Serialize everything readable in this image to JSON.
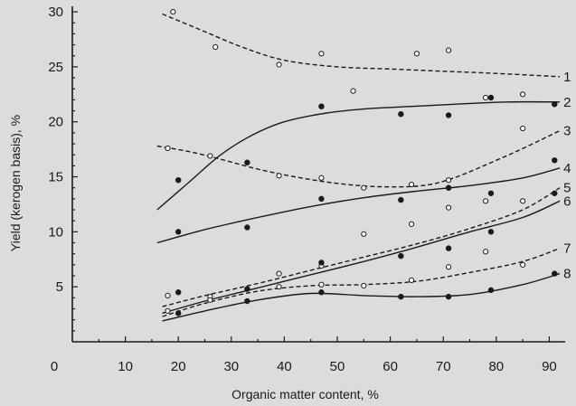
{
  "chart_data": {
    "type": "scatter",
    "title": "",
    "xlabel": "Organic matter content, %",
    "ylabel": "Yield (kerogen basis), %",
    "xlim": [
      0,
      93
    ],
    "ylim": [
      0,
      30.5
    ],
    "xticks": [
      0,
      10,
      20,
      30,
      40,
      50,
      60,
      70,
      80,
      90
    ],
    "yticks": [
      5,
      10,
      15,
      20,
      25,
      30
    ],
    "colors": {
      "ink": "#1a1a1a",
      "background": "#dcdcdc",
      "open_marker_fill": "#ffffff"
    },
    "series": [
      {
        "name": "1",
        "style": "dashed",
        "marker": "open",
        "curve": [
          [
            17,
            29.8
          ],
          [
            25,
            28.2
          ],
          [
            32,
            26.8
          ],
          [
            40,
            25.6
          ],
          [
            50,
            25.0
          ],
          [
            60,
            24.8
          ],
          [
            70,
            24.6
          ],
          [
            80,
            24.4
          ],
          [
            92,
            24.1
          ]
        ],
        "points": [
          [
            19,
            30.0
          ],
          [
            27,
            26.8
          ],
          [
            39,
            25.2
          ],
          [
            47,
            26.2
          ],
          [
            53,
            22.8
          ],
          [
            65,
            26.2
          ],
          [
            71,
            26.5
          ],
          [
            78,
            22.2
          ],
          [
            85,
            22.5
          ]
        ]
      },
      {
        "name": "2",
        "style": "solid",
        "marker": "filled",
        "curve": [
          [
            16,
            12.0
          ],
          [
            22,
            14.5
          ],
          [
            28,
            17.0
          ],
          [
            34,
            18.8
          ],
          [
            40,
            20.0
          ],
          [
            48,
            20.8
          ],
          [
            56,
            21.2
          ],
          [
            64,
            21.4
          ],
          [
            72,
            21.6
          ],
          [
            82,
            21.8
          ],
          [
            92,
            21.8
          ]
        ],
        "points": [
          [
            20,
            14.7
          ],
          [
            33,
            16.3
          ],
          [
            47,
            21.4
          ],
          [
            62,
            20.7
          ],
          [
            71,
            20.6
          ],
          [
            79,
            22.2
          ],
          [
            91,
            21.6
          ]
        ]
      },
      {
        "name": "3",
        "style": "dashed",
        "marker": "open",
        "curve": [
          [
            16,
            17.8
          ],
          [
            22,
            17.3
          ],
          [
            28,
            16.6
          ],
          [
            35,
            15.7
          ],
          [
            42,
            15.0
          ],
          [
            50,
            14.4
          ],
          [
            58,
            14.1
          ],
          [
            66,
            14.2
          ],
          [
            72,
            14.9
          ],
          [
            80,
            16.5
          ],
          [
            86,
            17.8
          ],
          [
            92,
            19.2
          ]
        ],
        "points": [
          [
            18,
            17.6
          ],
          [
            26,
            16.9
          ],
          [
            39,
            15.1
          ],
          [
            47,
            14.9
          ],
          [
            55,
            14.0
          ],
          [
            64,
            14.3
          ],
          [
            71,
            14.7
          ],
          [
            85,
            19.4
          ]
        ]
      },
      {
        "name": "4",
        "style": "solid",
        "marker": "filled",
        "curve": [
          [
            16,
            9.0
          ],
          [
            25,
            10.2
          ],
          [
            35,
            11.3
          ],
          [
            45,
            12.3
          ],
          [
            55,
            13.1
          ],
          [
            65,
            13.7
          ],
          [
            75,
            14.2
          ],
          [
            85,
            14.9
          ],
          [
            92,
            15.8
          ]
        ],
        "points": [
          [
            20,
            10.0
          ],
          [
            33,
            10.4
          ],
          [
            47,
            13.0
          ],
          [
            62,
            12.9
          ],
          [
            71,
            14.0
          ],
          [
            79,
            13.5
          ],
          [
            91,
            16.5
          ]
        ]
      },
      {
        "name": "5",
        "style": "dashed",
        "marker": "open",
        "curve": [
          [
            17,
            3.2
          ],
          [
            25,
            4.2
          ],
          [
            35,
            5.3
          ],
          [
            45,
            6.5
          ],
          [
            55,
            7.7
          ],
          [
            65,
            8.9
          ],
          [
            75,
            10.3
          ],
          [
            85,
            12.0
          ],
          [
            92,
            14.0
          ]
        ],
        "points": [
          [
            18,
            4.2
          ],
          [
            26,
            4.1
          ],
          [
            39,
            6.2
          ],
          [
            47,
            6.9
          ],
          [
            55,
            9.8
          ],
          [
            64,
            10.7
          ],
          [
            71,
            12.2
          ],
          [
            78,
            12.8
          ],
          [
            85,
            12.8
          ]
        ]
      },
      {
        "name": "6",
        "style": "solid",
        "marker": "filled",
        "curve": [
          [
            17,
            2.6
          ],
          [
            25,
            3.7
          ],
          [
            35,
            4.9
          ],
          [
            45,
            6.1
          ],
          [
            55,
            7.3
          ],
          [
            65,
            8.6
          ],
          [
            75,
            10.0
          ],
          [
            85,
            11.3
          ],
          [
            92,
            12.8
          ]
        ],
        "points": [
          [
            20,
            4.5
          ],
          [
            33,
            4.8
          ],
          [
            47,
            7.2
          ],
          [
            62,
            7.8
          ],
          [
            71,
            8.5
          ],
          [
            79,
            10.0
          ],
          [
            91,
            13.5
          ]
        ]
      },
      {
        "name": "7",
        "style": "dashed",
        "marker": "open",
        "curve": [
          [
            17,
            2.3
          ],
          [
            25,
            3.5
          ],
          [
            35,
            4.6
          ],
          [
            45,
            5.1
          ],
          [
            55,
            5.2
          ],
          [
            65,
            5.5
          ],
          [
            75,
            6.3
          ],
          [
            85,
            7.3
          ],
          [
            92,
            8.5
          ]
        ],
        "points": [
          [
            18,
            2.8
          ],
          [
            26,
            3.8
          ],
          [
            39,
            5.0
          ],
          [
            47,
            5.2
          ],
          [
            55,
            5.1
          ],
          [
            64,
            5.6
          ],
          [
            71,
            6.8
          ],
          [
            78,
            8.2
          ],
          [
            85,
            7.0
          ]
        ]
      },
      {
        "name": "8",
        "style": "solid",
        "marker": "filled",
        "curve": [
          [
            17,
            1.9
          ],
          [
            25,
            2.8
          ],
          [
            35,
            3.8
          ],
          [
            45,
            4.4
          ],
          [
            55,
            4.2
          ],
          [
            65,
            4.1
          ],
          [
            75,
            4.3
          ],
          [
            85,
            5.2
          ],
          [
            92,
            6.2
          ]
        ],
        "points": [
          [
            20,
            2.6
          ],
          [
            33,
            3.7
          ],
          [
            47,
            4.5
          ],
          [
            62,
            4.1
          ],
          [
            71,
            4.1
          ],
          [
            79,
            4.7
          ],
          [
            91,
            6.2
          ]
        ]
      }
    ]
  }
}
